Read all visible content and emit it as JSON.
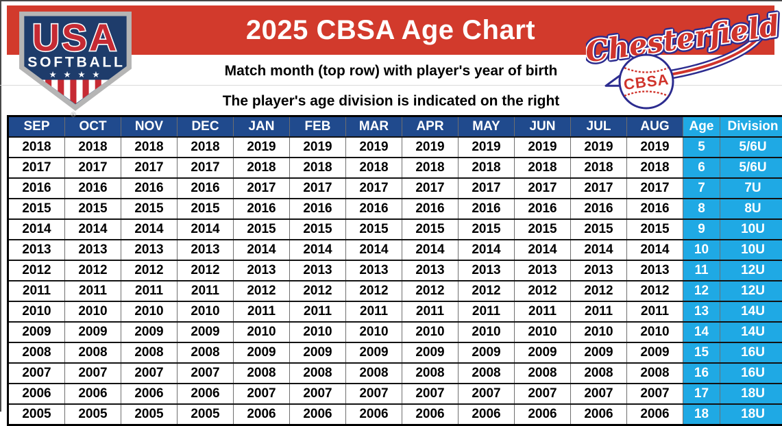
{
  "page": {
    "title": "2025 CBSA Age Chart",
    "subtitle_line1": "Match month (top row) with player's year of birth",
    "subtitle_line2": "The player's age division is indicated on the right"
  },
  "logos": {
    "usa_softball": {
      "line1": "USA",
      "line2": "SOFTBALL",
      "stars": "★ ★ ★ ★",
      "registered": "®"
    },
    "chesterfield": {
      "script": "Chesterfield",
      "ball": "CBSA"
    }
  },
  "colors": {
    "banner_red": "#d23a2c",
    "header_navy": "#204a8d",
    "age_cyan": "#1fa9e4"
  },
  "table": {
    "month_headers": [
      "SEP",
      "OCT",
      "NOV",
      "DEC",
      "JAN",
      "FEB",
      "MAR",
      "APR",
      "MAY",
      "JUN",
      "JUL",
      "AUG"
    ],
    "age_header": "Age",
    "division_header": "Division",
    "rows": [
      {
        "years": [
          "2018",
          "2018",
          "2018",
          "2018",
          "2019",
          "2019",
          "2019",
          "2019",
          "2019",
          "2019",
          "2019",
          "2019"
        ],
        "age": "5",
        "division": "5/6U"
      },
      {
        "years": [
          "2017",
          "2017",
          "2017",
          "2017",
          "2018",
          "2018",
          "2018",
          "2018",
          "2018",
          "2018",
          "2018",
          "2018"
        ],
        "age": "6",
        "division": "5/6U"
      },
      {
        "years": [
          "2016",
          "2016",
          "2016",
          "2016",
          "2017",
          "2017",
          "2017",
          "2017",
          "2017",
          "2017",
          "2017",
          "2017"
        ],
        "age": "7",
        "division": "7U"
      },
      {
        "years": [
          "2015",
          "2015",
          "2015",
          "2015",
          "2016",
          "2016",
          "2016",
          "2016",
          "2016",
          "2016",
          "2016",
          "2016"
        ],
        "age": "8",
        "division": "8U"
      },
      {
        "years": [
          "2014",
          "2014",
          "2014",
          "2014",
          "2015",
          "2015",
          "2015",
          "2015",
          "2015",
          "2015",
          "2015",
          "2015"
        ],
        "age": "9",
        "division": "10U"
      },
      {
        "years": [
          "2013",
          "2013",
          "2013",
          "2013",
          "2014",
          "2014",
          "2014",
          "2014",
          "2014",
          "2014",
          "2014",
          "2014"
        ],
        "age": "10",
        "division": "10U"
      },
      {
        "years": [
          "2012",
          "2012",
          "2012",
          "2012",
          "2013",
          "2013",
          "2013",
          "2013",
          "2013",
          "2013",
          "2013",
          "2013"
        ],
        "age": "11",
        "division": "12U"
      },
      {
        "years": [
          "2011",
          "2011",
          "2011",
          "2011",
          "2012",
          "2012",
          "2012",
          "2012",
          "2012",
          "2012",
          "2012",
          "2012"
        ],
        "age": "12",
        "division": "12U"
      },
      {
        "years": [
          "2010",
          "2010",
          "2010",
          "2010",
          "2011",
          "2011",
          "2011",
          "2011",
          "2011",
          "2011",
          "2011",
          "2011"
        ],
        "age": "13",
        "division": "14U"
      },
      {
        "years": [
          "2009",
          "2009",
          "2009",
          "2009",
          "2010",
          "2010",
          "2010",
          "2010",
          "2010",
          "2010",
          "2010",
          "2010"
        ],
        "age": "14",
        "division": "14U"
      },
      {
        "years": [
          "2008",
          "2008",
          "2008",
          "2008",
          "2009",
          "2009",
          "2009",
          "2009",
          "2009",
          "2009",
          "2009",
          "2009"
        ],
        "age": "15",
        "division": "16U"
      },
      {
        "years": [
          "2007",
          "2007",
          "2007",
          "2007",
          "2008",
          "2008",
          "2008",
          "2008",
          "2008",
          "2008",
          "2008",
          "2008"
        ],
        "age": "16",
        "division": "16U"
      },
      {
        "years": [
          "2006",
          "2006",
          "2006",
          "2006",
          "2007",
          "2007",
          "2007",
          "2007",
          "2007",
          "2007",
          "2007",
          "2007"
        ],
        "age": "17",
        "division": "18U"
      },
      {
        "years": [
          "2005",
          "2005",
          "2005",
          "2005",
          "2006",
          "2006",
          "2006",
          "2006",
          "2006",
          "2006",
          "2006",
          "2006"
        ],
        "age": "18",
        "division": "18U"
      }
    ]
  }
}
